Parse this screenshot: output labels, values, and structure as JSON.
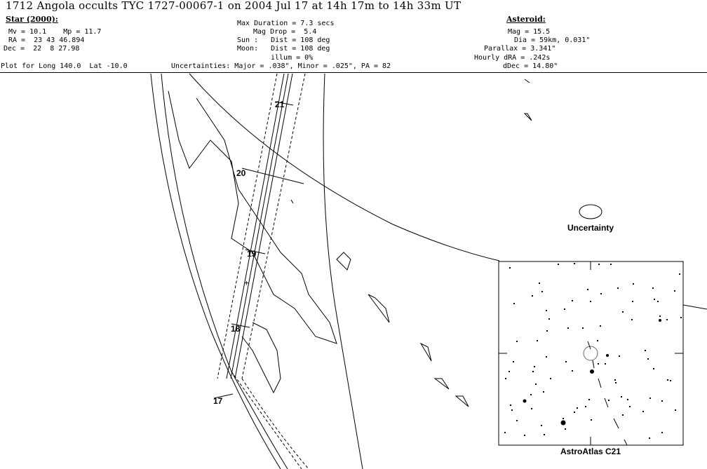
{
  "title": "1712 Angola occults TYC 1727-00067-1 on 2004 Jul 17 at 14h 17m to 14h 33m UT",
  "star": {
    "heading": "Star (2000):",
    "mv_mp": "Mv = 10.1    Mp = 11.7",
    "ra": "RA =  23 43 46.894",
    "dec": "Dec =  22  8 27.98"
  },
  "event": {
    "max_duration": "Max Duration = 7.3 secs",
    "mag_drop": "Mag Drop =  5.4",
    "sun": "Sun :   Dist = 108 deg",
    "moon": "Moon:   Dist = 108 deg",
    "illum": "illum = 0%"
  },
  "asteroid": {
    "heading": "Asteroid:",
    "mag": "Mag = 15.5",
    "dia": "Dia = 59km, 0.031\"",
    "parallax": "Parallax = 3.341\"",
    "hourly_dra": "Hourly dRA = .242s",
    "ddec": "dDec = 14.80\""
  },
  "plot_for": "Plot for Long 140.0  Lat -10.0",
  "uncertainties": "Uncertainties: Major = .038\", Minor = .025\", PA = 82",
  "map": {
    "time_labels": [
      "21",
      "20",
      "19",
      "18",
      "17"
    ],
    "uncertainty_label": "Uncertainty",
    "chart_label": "AstroAtlas C21"
  }
}
